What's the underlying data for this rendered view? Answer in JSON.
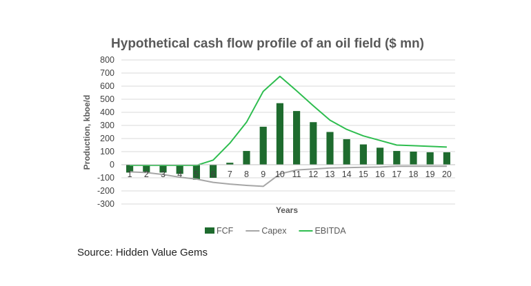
{
  "colors": {
    "fcf": "#1e6b2e",
    "capex": "#a6a6a6",
    "ebitda": "#2ebd4f",
    "grid": "#d9d9d9",
    "text": "#595959"
  },
  "chart_data": {
    "type": "bar",
    "title": "Hypothetical cash flow profile of an oil field ($ mn)",
    "xlabel": "Years",
    "ylabel": "Production, kboe/d",
    "ylim": [
      -300,
      800
    ],
    "yticks": [
      -300,
      -200,
      -100,
      0,
      100,
      200,
      300,
      400,
      500,
      600,
      700,
      800
    ],
    "grid": true,
    "legend_position": "bottom",
    "categories": [
      "1",
      "2",
      "3",
      "4",
      "5",
      "6",
      "7",
      "8",
      "9",
      "10",
      "11",
      "12",
      "13",
      "14",
      "15",
      "16",
      "17",
      "18",
      "19",
      "20"
    ],
    "series": [
      {
        "name": "FCF",
        "kind": "bar",
        "color_key": "fcf",
        "values": [
          -60,
          -60,
          -60,
          -70,
          -115,
          -100,
          15,
          105,
          290,
          470,
          410,
          325,
          250,
          195,
          155,
          130,
          105,
          100,
          95,
          95
        ]
      },
      {
        "name": "Capex",
        "kind": "line",
        "color_key": "capex",
        "values": [
          -55,
          -60,
          -75,
          -95,
          -110,
          -135,
          -148,
          -158,
          -165,
          -70,
          -40,
          -33,
          -25,
          -22,
          -20,
          -18,
          -12,
          -12,
          -12,
          -12
        ]
      },
      {
        "name": "EBITDA",
        "kind": "line",
        "color_key": "ebitda",
        "values": [
          -5,
          -5,
          -5,
          -5,
          -5,
          35,
          165,
          325,
          560,
          675,
          565,
          450,
          340,
          270,
          220,
          185,
          150,
          145,
          140,
          135
        ]
      }
    ]
  },
  "source_text": "Source: Hidden Value Gems"
}
